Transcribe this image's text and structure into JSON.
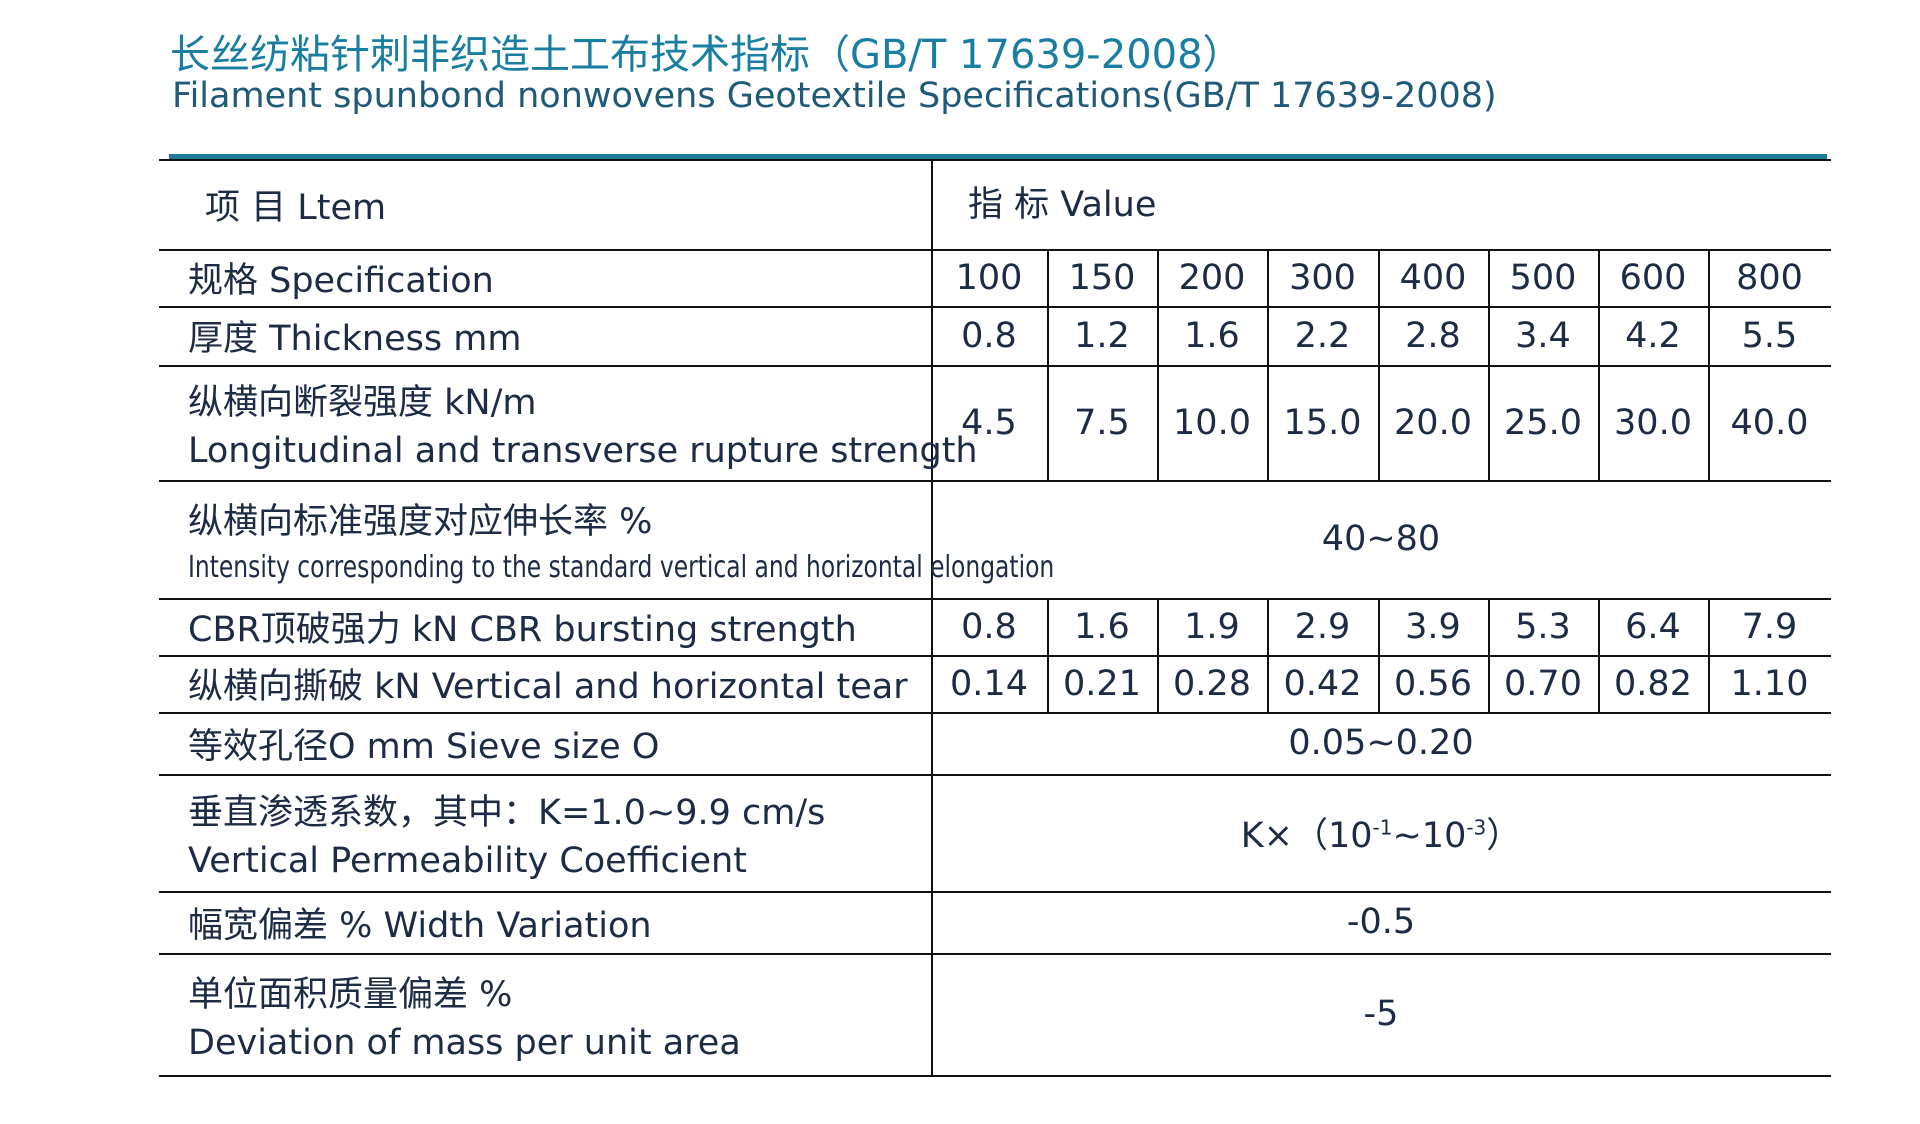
{
  "title_zh": "长丝纺粘针刺非织造土工布技术指标（GB/T 17639-2008）",
  "title_en": "Filament spunbond nonwovens Geotextile Specifications(GB/T 17639-2008)",
  "table": {
    "header": {
      "item": "项 目 Ltem",
      "value": "指 标 Value"
    },
    "rows": [
      {
        "label": [
          "规格  Specification"
        ],
        "values": [
          "100",
          "150",
          "200",
          "300",
          "400",
          "500",
          "600",
          "800"
        ]
      },
      {
        "label": [
          "厚度  Thickness   mm"
        ],
        "values": [
          "0.8",
          "1.2",
          "1.6",
          "2.2",
          "2.8",
          "3.4",
          "4.2",
          "5.5"
        ]
      },
      {
        "label": [
          "纵横向断裂强度  kN/m",
          "Longitudinal and transverse rupture strength"
        ],
        "values": [
          "4.5",
          "7.5",
          "10.0",
          "15.0",
          "20.0",
          "25.0",
          "30.0",
          "40.0"
        ]
      },
      {
        "label": [
          "纵横向标准强度对应伸长率  %",
          "Intensity corresponding to the standard vertical and horizontal elongation"
        ],
        "value": "40~80"
      },
      {
        "label": [
          "CBR顶破强力  kN  CBR bursting strength"
        ],
        "values": [
          "0.8",
          "1.6",
          "1.9",
          "2.9",
          "3.9",
          "5.3",
          "6.4",
          "7.9"
        ]
      },
      {
        "label": [
          "纵横向撕破  kN  Vertical and horizontal tear"
        ],
        "values": [
          "0.14",
          "0.21",
          "0.28",
          "0.42",
          "0.56",
          "0.70",
          "0.82",
          "1.10"
        ]
      },
      {
        "label": [
          "等效孔径O  mm  Sieve size O"
        ],
        "value": "0.05~0.20"
      },
      {
        "label": [
          "垂直渗透系数，其中：K=1.0~9.9  cm/s",
          "Vertical Permeability Coefficient"
        ],
        "parts": [
          {
            "text": "K×（10"
          },
          {
            "sup": "-1"
          },
          {
            "text": "~10"
          },
          {
            "sup": "-3"
          },
          {
            "text": "）"
          }
        ]
      },
      {
        "label": [
          "幅宽偏差  %  Width Variation"
        ],
        "value": "-0.5"
      },
      {
        "label": [
          "单位面积质量偏差  %",
          "Deviation of mass per unit area"
        ],
        "value": "-5"
      }
    ]
  }
}
